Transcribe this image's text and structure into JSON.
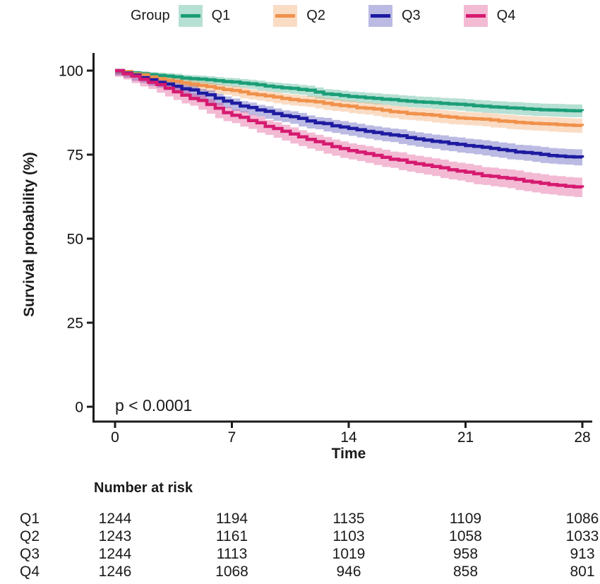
{
  "legend": {
    "title": "Group"
  },
  "chart_data": {
    "type": "line",
    "subtype": "kaplan-meier-survival",
    "xlabel": "Time",
    "ylabel": "Survival probability (%)",
    "annotation": "p < 0.0001",
    "xlim": [
      0,
      28
    ],
    "ylim": [
      0,
      100
    ],
    "x_ticks": [
      0,
      7,
      14,
      21,
      28
    ],
    "y_ticks": [
      0,
      25,
      50,
      75,
      100
    ],
    "grid": "off",
    "legend_position": "top",
    "axis_color": "#1b1b1b",
    "series": [
      {
        "name": "Q1",
        "color": "#1B9E77",
        "band_color": "rgba(27,158,119,0.32)",
        "ci_halfwidth_end": 1.9,
        "points": [
          [
            0,
            100
          ],
          [
            1,
            99.3
          ],
          [
            2,
            98.8
          ],
          [
            4,
            97.8
          ],
          [
            6,
            97.0
          ],
          [
            7,
            96.6
          ],
          [
            9,
            95.4
          ],
          [
            11,
            94.4
          ],
          [
            13,
            92.9
          ],
          [
            14,
            92.3
          ],
          [
            16,
            91.5
          ],
          [
            18,
            90.7
          ],
          [
            20,
            90.1
          ],
          [
            21,
            89.8
          ],
          [
            23,
            89.1
          ],
          [
            25,
            88.5
          ],
          [
            27,
            88.1
          ],
          [
            28,
            88.0
          ]
        ]
      },
      {
        "name": "Q2",
        "color": "#F0914B",
        "band_color": "rgba(240,145,75,0.32)",
        "ci_halfwidth_end": 2.1,
        "points": [
          [
            0,
            100
          ],
          [
            1,
            99.0
          ],
          [
            2,
            98.1
          ],
          [
            4,
            96.3
          ],
          [
            6,
            94.8
          ],
          [
            7,
            94.1
          ],
          [
            9,
            92.5
          ],
          [
            11,
            91.1
          ],
          [
            13,
            89.9
          ],
          [
            14,
            89.4
          ],
          [
            16,
            88.2
          ],
          [
            18,
            87.1
          ],
          [
            20,
            86.2
          ],
          [
            21,
            85.8
          ],
          [
            23,
            85.0
          ],
          [
            25,
            84.3
          ],
          [
            27,
            83.8
          ],
          [
            28,
            83.6
          ]
        ]
      },
      {
        "name": "Q3",
        "color": "#1E1BA1",
        "band_color": "rgba(30,27,161,0.30)",
        "ci_halfwidth_end": 2.3,
        "points": [
          [
            0,
            100
          ],
          [
            1,
            98.7
          ],
          [
            2,
            97.3
          ],
          [
            4,
            94.6
          ],
          [
            6,
            91.8
          ],
          [
            7,
            90.3
          ],
          [
            9,
            87.9
          ],
          [
            11,
            85.8
          ],
          [
            13,
            83.6
          ],
          [
            14,
            82.8
          ],
          [
            16,
            81.2
          ],
          [
            18,
            79.7
          ],
          [
            20,
            78.3
          ],
          [
            21,
            77.7
          ],
          [
            23,
            76.5
          ],
          [
            25,
            75.4
          ],
          [
            27,
            74.4
          ],
          [
            28,
            74.1
          ]
        ]
      },
      {
        "name": "Q4",
        "color": "#D61A70",
        "band_color": "rgba(214,26,112,0.30)",
        "ci_halfwidth_end": 2.8,
        "points": [
          [
            0,
            100
          ],
          [
            1,
            98.4
          ],
          [
            2,
            96.5
          ],
          [
            4,
            92.7
          ],
          [
            6,
            88.8
          ],
          [
            7,
            86.7
          ],
          [
            9,
            83.4
          ],
          [
            11,
            80.3
          ],
          [
            13,
            77.4
          ],
          [
            14,
            76.2
          ],
          [
            16,
            74.2
          ],
          [
            18,
            72.3
          ],
          [
            20,
            70.5
          ],
          [
            21,
            69.8
          ],
          [
            23,
            68.2
          ],
          [
            25,
            66.8
          ],
          [
            27,
            65.6
          ],
          [
            28,
            65.2
          ]
        ]
      }
    ]
  },
  "risk_table": {
    "title": "Number at risk",
    "time_points": [
      0,
      7,
      14,
      21,
      28
    ],
    "rows": [
      {
        "group": "Q1",
        "counts": [
          "1244",
          "1194",
          "1135",
          "1109",
          "1086"
        ]
      },
      {
        "group": "Q2",
        "counts": [
          "1243",
          "1161",
          "1103",
          "1058",
          "1033"
        ]
      },
      {
        "group": "Q3",
        "counts": [
          "1244",
          "1113",
          "1019",
          "958",
          "913"
        ]
      },
      {
        "group": "Q4",
        "counts": [
          "1246",
          "1068",
          "946",
          "858",
          "801"
        ]
      }
    ]
  }
}
